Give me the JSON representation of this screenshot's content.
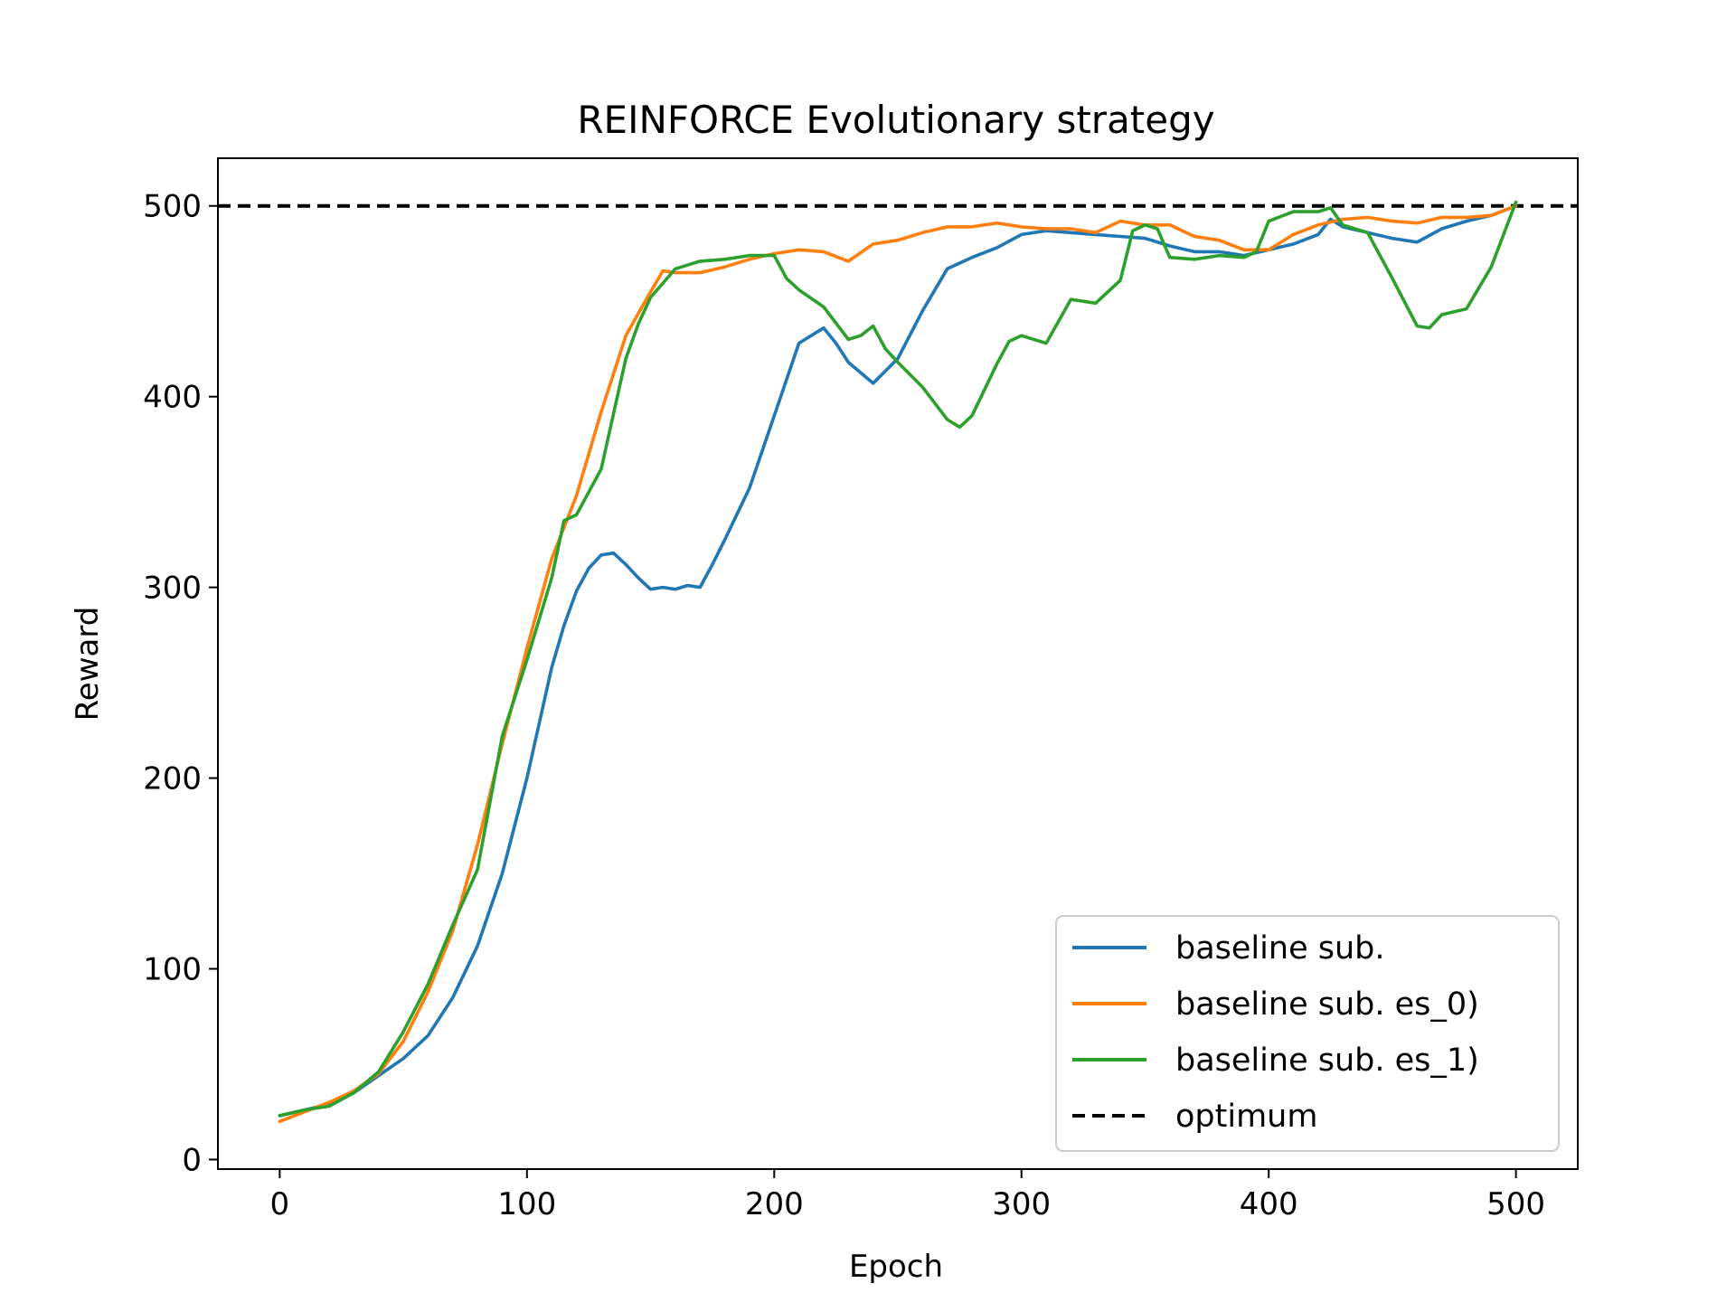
{
  "chart_data": {
    "type": "line",
    "title": "REINFORCE Evolutionary strategy",
    "xlabel": "Epoch",
    "ylabel": "Reward",
    "xlim": [
      -25,
      525
    ],
    "ylim": [
      -5,
      525
    ],
    "xticks": [
      0,
      100,
      200,
      300,
      400,
      500
    ],
    "yticks": [
      0,
      100,
      200,
      300,
      400,
      500
    ],
    "grid": false,
    "legend_position": "lower-right",
    "series": [
      {
        "name": "baseline sub.",
        "color": "#1f77b4",
        "x": [
          0,
          10,
          20,
          30,
          40,
          50,
          60,
          70,
          80,
          90,
          100,
          110,
          115,
          120,
          125,
          130,
          135,
          140,
          145,
          150,
          155,
          160,
          165,
          170,
          175,
          180,
          190,
          200,
          210,
          220,
          225,
          230,
          240,
          250,
          260,
          270,
          280,
          290,
          300,
          310,
          320,
          330,
          340,
          350,
          360,
          370,
          380,
          390,
          400,
          410,
          420,
          425,
          430,
          440,
          450,
          460,
          470,
          480,
          490,
          500
        ],
        "y": [
          23,
          26,
          29,
          35,
          44,
          53,
          65,
          85,
          112,
          150,
          200,
          258,
          280,
          298,
          310,
          317,
          318,
          312,
          305,
          299,
          300,
          299,
          301,
          300,
          312,
          325,
          352,
          390,
          428,
          436,
          428,
          418,
          407,
          420,
          445,
          467,
          473,
          478,
          485,
          487,
          486,
          485,
          484,
          483,
          479,
          476,
          476,
          474,
          477,
          480,
          485,
          493,
          489,
          486,
          483,
          481,
          488,
          492,
          495,
          500
        ]
      },
      {
        "name": "baseline sub. es_0)",
        "color": "#ff7f0e",
        "x": [
          0,
          10,
          20,
          30,
          40,
          50,
          60,
          70,
          80,
          90,
          100,
          110,
          120,
          130,
          140,
          150,
          155,
          160,
          170,
          180,
          190,
          200,
          210,
          220,
          230,
          240,
          250,
          260,
          270,
          280,
          290,
          300,
          310,
          320,
          330,
          340,
          350,
          360,
          370,
          380,
          390,
          400,
          410,
          420,
          430,
          440,
          450,
          460,
          470,
          480,
          490,
          500
        ],
        "y": [
          20,
          25,
          30,
          36,
          45,
          62,
          88,
          120,
          165,
          218,
          268,
          315,
          348,
          392,
          432,
          455,
          466,
          465,
          465,
          468,
          472,
          475,
          477,
          476,
          471,
          480,
          482,
          486,
          489,
          489,
          491,
          489,
          488,
          488,
          486,
          492,
          490,
          490,
          484,
          482,
          477,
          477,
          485,
          490,
          493,
          494,
          492,
          491,
          494,
          494,
          495,
          500
        ]
      },
      {
        "name": "baseline sub. es_1)",
        "color": "#2ca02c",
        "x": [
          0,
          10,
          20,
          30,
          40,
          50,
          60,
          70,
          80,
          90,
          100,
          110,
          115,
          120,
          130,
          140,
          145,
          150,
          160,
          170,
          180,
          190,
          195,
          200,
          205,
          210,
          220,
          230,
          235,
          240,
          245,
          250,
          260,
          270,
          275,
          280,
          290,
          295,
          300,
          310,
          320,
          330,
          340,
          345,
          350,
          355,
          360,
          370,
          380,
          390,
          395,
          400,
          410,
          420,
          425,
          430,
          440,
          450,
          460,
          465,
          470,
          480,
          490,
          500
        ],
        "y": [
          23,
          26,
          28,
          35,
          46,
          67,
          92,
          123,
          152,
          222,
          262,
          305,
          335,
          338,
          362,
          420,
          438,
          452,
          467,
          471,
          472,
          474,
          474,
          474,
          462,
          456,
          447,
          430,
          432,
          437,
          425,
          418,
          405,
          388,
          384,
          390,
          417,
          429,
          432,
          428,
          451,
          449,
          461,
          487,
          490,
          488,
          473,
          472,
          474,
          473,
          476,
          492,
          497,
          497,
          499,
          490,
          486,
          462,
          437,
          436,
          443,
          446,
          468,
          502
        ]
      }
    ],
    "reference_line": {
      "name": "optimum",
      "y": 500,
      "color": "#000000",
      "style": "dashed"
    }
  }
}
